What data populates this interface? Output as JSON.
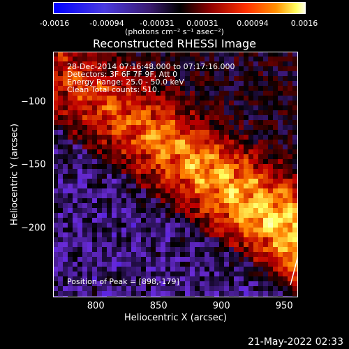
{
  "colorbar": {
    "ticks": [
      "-0.0016",
      "-0.00094",
      "-0.00031",
      "0.00031",
      "0.00094",
      "0.0016"
    ],
    "units": "(photons cm⁻² s⁻¹ asec⁻²)"
  },
  "chart_data": {
    "type": "heatmap",
    "title": "Reconstructed RHESSI Image",
    "xlabel": "Heliocentric X (arcsec)",
    "ylabel": "Heliocentric Y (arcsec)",
    "xlim": [
      766,
      961
    ],
    "ylim": [
      -255,
      -60
    ],
    "x_ticks": [
      "800",
      "850",
      "900",
      "950"
    ],
    "y_ticks": [
      "−100",
      "−150",
      "−200"
    ],
    "x_tick_values": [
      800,
      850,
      900,
      950
    ],
    "y_tick_values": [
      -100,
      -150,
      -200
    ],
    "color_range": [
      -0.0016,
      0.0016
    ],
    "colormap": [
      "#0000ff",
      "#6a2bd8",
      "#000000",
      "#c00000",
      "#ff8000",
      "#ffff60",
      "#ffffff"
    ],
    "peak": [
      898,
      -179
    ],
    "info_lines": [
      "28-Dec-2014 07:16:48.000 to 07:17:16.000",
      "Detectors: 3F 6F 7F 9F, Att 0",
      "Energy Range: 25.0 - 50.0 keV",
      "Clean     Total counts: 510."
    ],
    "peak_text": "Position of Peak = [898,-179]",
    "limb_curve": [
      [
        955,
        -245
      ],
      [
        961,
        -222
      ]
    ]
  },
  "timestamp": "21-May-2022 02:33"
}
